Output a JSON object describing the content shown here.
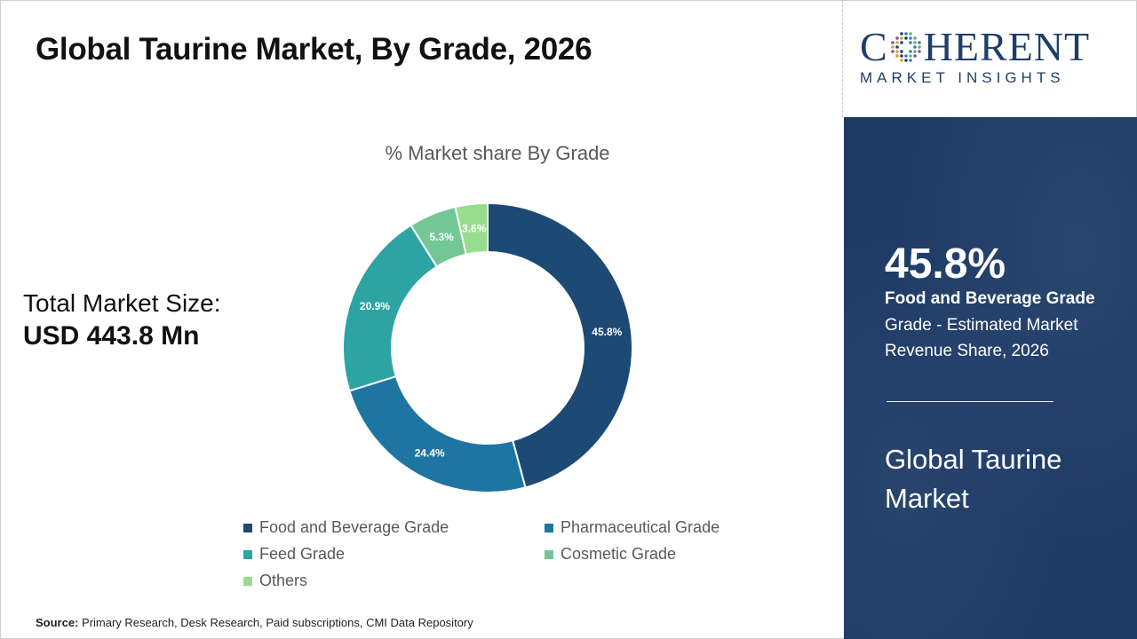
{
  "header": {
    "title": "Global Taurine Market, By Grade, 2026"
  },
  "total": {
    "label": "Total Market Size:",
    "value": "USD 443.8 Mn"
  },
  "source": {
    "label": "Source:",
    "text": "Primary Research, Desk Research, Paid subscriptions, CMI Data Repository"
  },
  "logo": {
    "main_before": "C",
    "main_after": "HERENT",
    "sub": "MARKET INSIGHTS"
  },
  "panel": {
    "percent": "45.8%",
    "segment": "Food and Beverage Grade",
    "description": "Grade - Estimated Market Revenue Share, 2026",
    "market": "Global Taurine Market"
  },
  "chart_data": {
    "type": "pie",
    "title": "% Market share By Grade",
    "donut": true,
    "legend_position": "bottom",
    "categories": [
      "Food and Beverage Grade",
      "Pharmaceutical Grade",
      "Feed Grade",
      "Cosmetic Grade",
      "Others"
    ],
    "values": [
      45.8,
      24.4,
      20.9,
      5.3,
      3.6
    ],
    "labels": [
      "45.8%",
      "24.4%",
      "20.9%",
      "5.3%",
      "3.6%"
    ],
    "colors": [
      "#1d4a74",
      "#1f75a1",
      "#2ea3a3",
      "#72c795",
      "#98dd8e"
    ],
    "label_colors": [
      "#ffffff",
      "#ffffff",
      "#ffffff",
      "#ffffff",
      "#ffffff"
    ]
  }
}
